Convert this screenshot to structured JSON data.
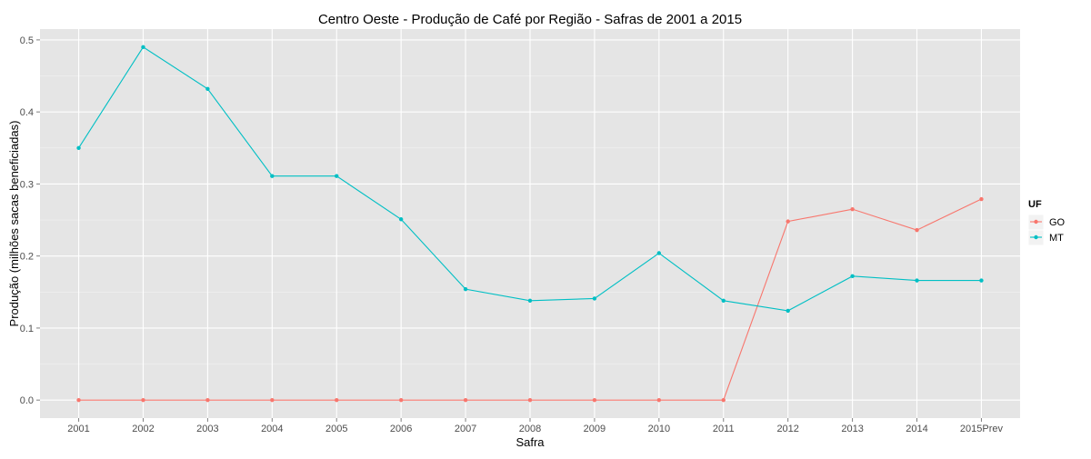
{
  "chart_data": {
    "type": "line",
    "title": "Centro Oeste  - Produção de Café por Região - Safras de 2001 a 2015",
    "xlabel": "Safra",
    "ylabel": "Produção (milhões sacas beneficiadas)",
    "categories": [
      "2001",
      "2002",
      "2003",
      "2004",
      "2005",
      "2006",
      "2007",
      "2008",
      "2009",
      "2010",
      "2011",
      "2012",
      "2013",
      "2014",
      "2015Prev"
    ],
    "ylim": [
      -0.025,
      0.515
    ],
    "yticks": [
      0.0,
      0.1,
      0.2,
      0.3,
      0.4,
      0.5
    ],
    "ytick_labels": [
      "0.0",
      "0.1",
      "0.2",
      "0.3",
      "0.4",
      "0.5"
    ],
    "grid": true,
    "legend": {
      "title": "UF",
      "position": "right"
    },
    "series": [
      {
        "name": "GO",
        "color": "#f8766d",
        "values": [
          0,
          0,
          0,
          0,
          0,
          0,
          0,
          0,
          0,
          0,
          0,
          0.248,
          0.265,
          0.236,
          0.279
        ]
      },
      {
        "name": "MT",
        "color": "#00bfc4",
        "values": [
          0.35,
          0.49,
          0.432,
          0.311,
          0.311,
          0.251,
          0.154,
          0.138,
          0.141,
          0.204,
          0.138,
          0.124,
          0.172,
          0.166,
          0.166
        ]
      }
    ]
  }
}
